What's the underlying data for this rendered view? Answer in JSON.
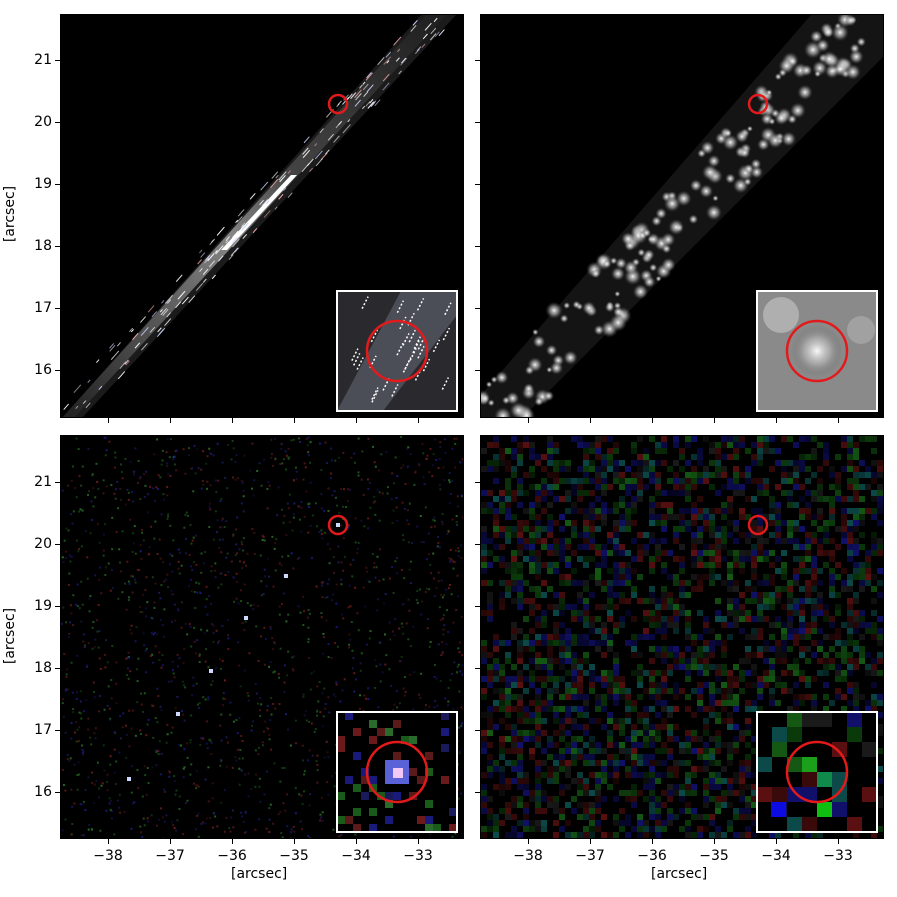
{
  "figure": {
    "y_axis_label": "[arcsec]",
    "x_axis_label": "[arcsec]",
    "y_ticks": [
      "21",
      "20",
      "19",
      "18",
      "17",
      "16"
    ],
    "x_ticks": [
      "−38",
      "−37",
      "−36",
      "−35",
      "−34",
      "−33"
    ],
    "marker_color": "#e31a1c",
    "inset_border_color": "#ffffff"
  },
  "panels": [
    {
      "name": "top-left",
      "content": "diagonal arc with streaked bright pixels"
    },
    {
      "name": "top-right",
      "content": "diagonal arc of bright blobs (smooth grayscale)"
    },
    {
      "name": "bottom-left",
      "content": "RGB noise with faint diagonal point sources"
    },
    {
      "name": "bottom-right",
      "content": "coarse RGB pixel noise"
    }
  ]
}
